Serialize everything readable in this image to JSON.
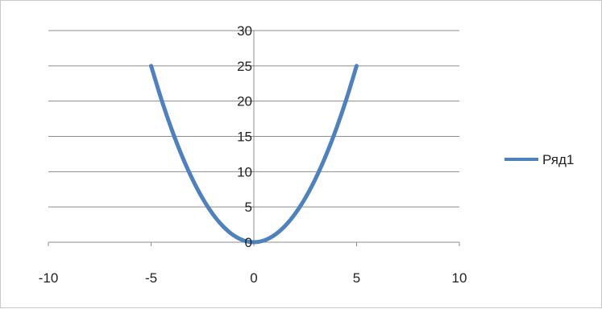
{
  "chart_data": {
    "type": "scatter",
    "subtype": "smooth-line",
    "title": "",
    "xlabel": "",
    "ylabel": "",
    "xlim": [
      -10,
      10
    ],
    "ylim": [
      0,
      30
    ],
    "xticks": [
      -10,
      -5,
      0,
      5,
      10
    ],
    "yticks": [
      0,
      5,
      10,
      15,
      20,
      25,
      30
    ],
    "xtick_labels": [
      "-10",
      "-5",
      "0",
      "5",
      "10"
    ],
    "ytick_labels": [
      "0",
      "5",
      "10",
      "15",
      "20",
      "25",
      "30"
    ],
    "grid": {
      "horizontal": true,
      "vertical": false
    },
    "legend_position": "right",
    "series": [
      {
        "name": "Ряд1",
        "color": "#4f81bd",
        "x": [
          -5,
          -4.5,
          -4,
          -3.5,
          -3,
          -2.5,
          -2,
          -1.5,
          -1,
          -0.5,
          0,
          0.5,
          1,
          1.5,
          2,
          2.5,
          3,
          3.5,
          4,
          4.5,
          5
        ],
        "y": [
          25,
          20.25,
          16,
          12.25,
          9,
          6.25,
          4,
          2.25,
          1,
          0.25,
          0,
          0.25,
          1,
          2.25,
          4,
          6.25,
          9,
          12.25,
          16,
          20.25,
          25
        ]
      }
    ]
  }
}
